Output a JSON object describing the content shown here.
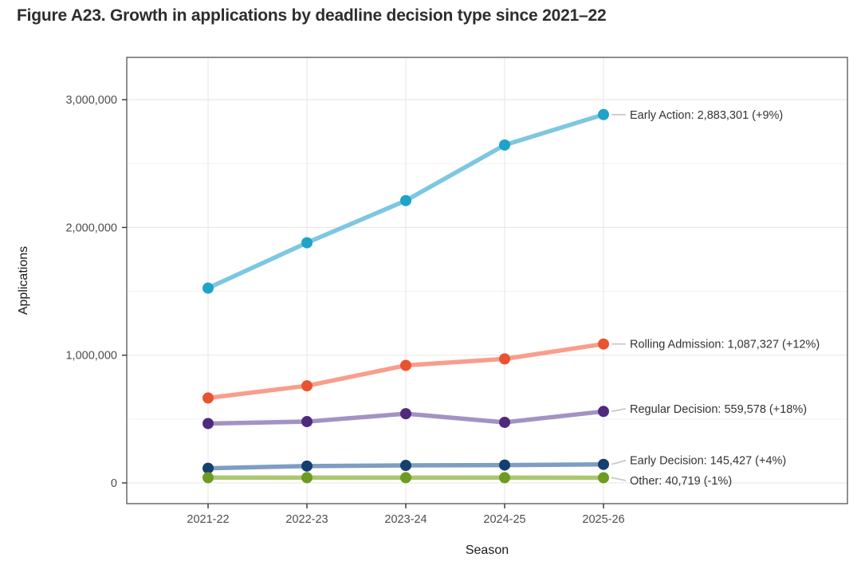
{
  "figure": {
    "title": "Figure A23. Growth in applications by deadline decision type since 2021–22"
  },
  "chart_data": {
    "type": "line",
    "x": [
      "2021-22",
      "2022-23",
      "2023-24",
      "2024-25",
      "2025-26"
    ],
    "xlabel": "Season",
    "ylabel": "Applications",
    "ylim": [
      0,
      3300000
    ],
    "y_major_ticks": [
      0,
      1000000,
      2000000,
      3000000
    ],
    "y_tick_labels": [
      "0",
      "1,000,000",
      "2,000,000",
      "3,000,000"
    ],
    "y_minor_ticks": [
      500000,
      1500000,
      2500000
    ],
    "grid": "light gray major+minor horizontal, major vertical; white panel with gray border",
    "legend": "direct labels at right end of each line",
    "series": [
      {
        "name": "Early Action",
        "values": [
          1525000,
          1880000,
          2210000,
          2645230,
          2883301
        ],
        "final_value": 2883301,
        "yoy_change": "+9%",
        "annotation": "Early Action: 2,883,301 (+9%)",
        "line_color": "#7cc7e2",
        "point_color": "#1ea3c9"
      },
      {
        "name": "Rolling Admission",
        "values": [
          665000,
          760000,
          920000,
          970828,
          1087327
        ],
        "final_value": 1087327,
        "yoy_change": "+12%",
        "annotation": "Rolling Admission: 1,087,327 (+12%)",
        "line_color": "#f89e8d",
        "point_color": "#e95331"
      },
      {
        "name": "Regular Decision",
        "values": [
          465000,
          480000,
          542000,
          474219,
          559578
        ],
        "final_value": 559578,
        "yoy_change": "+18%",
        "annotation": "Regular Decision: 559,578 (+18%)",
        "line_color": "#a393c3",
        "point_color": "#4f2a7d"
      },
      {
        "name": "Early Decision",
        "values": [
          115000,
          132000,
          137000,
          139834,
          145427
        ],
        "final_value": 145427,
        "yoy_change": "+4%",
        "annotation": "Early Decision: 145,427 (+4%)",
        "line_color": "#7e9dc2",
        "point_color": "#143f6e"
      },
      {
        "name": "Other",
        "values": [
          41200,
          41400,
          41100,
          41130,
          40719
        ],
        "final_value": 40719,
        "yoy_change": "-1%",
        "annotation": "Other: 40,719 (-1%)",
        "line_color": "#aac86f",
        "point_color": "#6d9b20"
      }
    ],
    "colors": {
      "grid_major": "#e9e9e9",
      "grid_minor": "#f4f4f4",
      "panel_border": "#464646",
      "tick_mark": "#333333",
      "tick_label": "#4d4d4d",
      "axis_title": "#1a1a1a",
      "annotation_text": "#333333",
      "annotation_leader": "#c6c6c6"
    }
  }
}
